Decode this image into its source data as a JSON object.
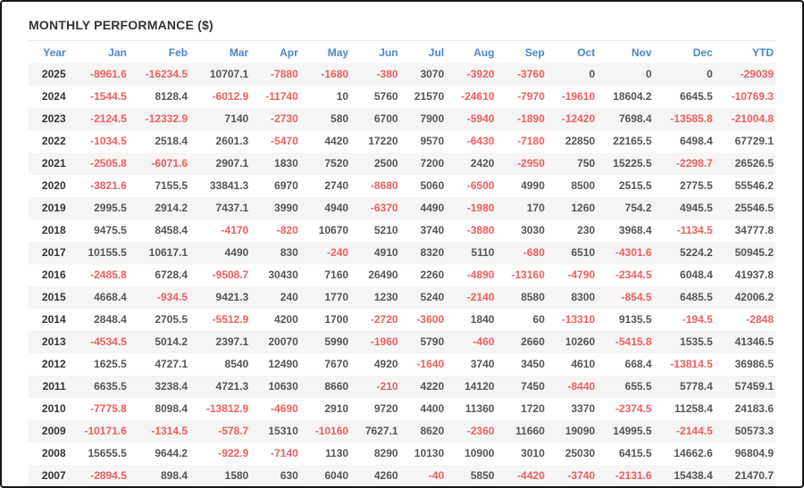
{
  "widget": {
    "title": "MONTHLY PERFORMANCE ($)"
  },
  "table": {
    "columns": [
      "Year",
      "Jan",
      "Feb",
      "Mar",
      "Apr",
      "May",
      "Jun",
      "Jul",
      "Aug",
      "Sep",
      "Oct",
      "Nov",
      "Dec",
      "YTD"
    ],
    "rows": [
      {
        "year": "2025",
        "values": [
          "-8961.6",
          "-16234.5",
          "10707.1",
          "-7880",
          "-1680",
          "-380",
          "3070",
          "-3920",
          "-3760",
          "0",
          "0",
          "0",
          "-29039"
        ]
      },
      {
        "year": "2024",
        "values": [
          "-1544.5",
          "8128.4",
          "-6012.9",
          "-11740",
          "10",
          "5760",
          "21570",
          "-24610",
          "-7970",
          "-19610",
          "18604.2",
          "6645.5",
          "-10769.3"
        ]
      },
      {
        "year": "2023",
        "values": [
          "-2124.5",
          "-12332.9",
          "7140",
          "-2730",
          "580",
          "6700",
          "7900",
          "-5940",
          "-1890",
          "-12420",
          "7698.4",
          "-13585.8",
          "-21004.8"
        ]
      },
      {
        "year": "2022",
        "values": [
          "-1034.5",
          "2518.4",
          "2601.3",
          "-5470",
          "4420",
          "17220",
          "9570",
          "-6430",
          "-7180",
          "22850",
          "22165.5",
          "6498.4",
          "67729.1"
        ]
      },
      {
        "year": "2021",
        "values": [
          "-2505.8",
          "-6071.6",
          "2907.1",
          "1830",
          "7520",
          "2500",
          "7200",
          "2420",
          "-2950",
          "750",
          "15225.5",
          "-2298.7",
          "26526.5"
        ]
      },
      {
        "year": "2020",
        "values": [
          "-3821.6",
          "7155.5",
          "33841.3",
          "6970",
          "2740",
          "-8680",
          "5060",
          "-6500",
          "4990",
          "8500",
          "2515.5",
          "2775.5",
          "55546.2"
        ]
      },
      {
        "year": "2019",
        "values": [
          "2995.5",
          "2914.2",
          "7437.1",
          "3990",
          "4940",
          "-6370",
          "4490",
          "-1980",
          "170",
          "1260",
          "754.2",
          "4945.5",
          "25546.5"
        ]
      },
      {
        "year": "2018",
        "values": [
          "9475.5",
          "8458.4",
          "-4170",
          "-820",
          "10670",
          "5210",
          "3740",
          "-3880",
          "3030",
          "230",
          "3968.4",
          "-1134.5",
          "34777.8"
        ]
      },
      {
        "year": "2017",
        "values": [
          "10155.5",
          "10617.1",
          "4490",
          "830",
          "-240",
          "4910",
          "8320",
          "5110",
          "-680",
          "6510",
          "-4301.6",
          "5224.2",
          "50945.2"
        ]
      },
      {
        "year": "2016",
        "values": [
          "-2485.8",
          "6728.4",
          "-9508.7",
          "30430",
          "7160",
          "26490",
          "2260",
          "-4890",
          "-13160",
          "-4790",
          "-2344.5",
          "6048.4",
          "41937.8"
        ]
      },
      {
        "year": "2015",
        "values": [
          "4668.4",
          "-934.5",
          "9421.3",
          "240",
          "1770",
          "1230",
          "5240",
          "-2140",
          "8580",
          "8300",
          "-854.5",
          "6485.5",
          "42006.2"
        ]
      },
      {
        "year": "2014",
        "values": [
          "2848.4",
          "2705.5",
          "-5512.9",
          "4200",
          "1700",
          "-2720",
          "-3600",
          "1840",
          "60",
          "-13310",
          "9135.5",
          "-194.5",
          "-2848"
        ]
      },
      {
        "year": "2013",
        "values": [
          "-4534.5",
          "5014.2",
          "2397.1",
          "20070",
          "5990",
          "-1960",
          "5790",
          "-460",
          "2660",
          "10260",
          "-5415.8",
          "1535.5",
          "41346.5"
        ]
      },
      {
        "year": "2012",
        "values": [
          "1625.5",
          "4727.1",
          "8540",
          "12490",
          "7670",
          "4920",
          "-1640",
          "3740",
          "3450",
          "4610",
          "668.4",
          "-13814.5",
          "36986.5"
        ]
      },
      {
        "year": "2011",
        "values": [
          "6635.5",
          "3238.4",
          "4721.3",
          "10630",
          "8660",
          "-210",
          "4220",
          "14120",
          "7450",
          "-8440",
          "655.5",
          "5778.4",
          "57459.1"
        ]
      },
      {
        "year": "2010",
        "values": [
          "-7775.8",
          "8098.4",
          "-13812.9",
          "-4690",
          "2910",
          "9720",
          "4400",
          "11360",
          "1720",
          "3370",
          "-2374.5",
          "11258.4",
          "24183.6"
        ]
      },
      {
        "year": "2009",
        "values": [
          "-10171.6",
          "-1314.5",
          "-578.7",
          "15310",
          "-10160",
          "7627.1",
          "8620",
          "-2360",
          "11660",
          "19090",
          "14995.5",
          "-2144.5",
          "50573.3"
        ]
      },
      {
        "year": "2008",
        "values": [
          "15655.5",
          "9644.2",
          "-922.9",
          "-7140",
          "1130",
          "8290",
          "10130",
          "10900",
          "3010",
          "25030",
          "6415.5",
          "14662.6",
          "96804.9"
        ]
      },
      {
        "year": "2007",
        "values": [
          "-2894.5",
          "898.4",
          "1580",
          "630",
          "6040",
          "4260",
          "-40",
          "5850",
          "-4420",
          "-3740",
          "-2131.6",
          "15438.4",
          "21470.7"
        ]
      }
    ]
  },
  "colors": {
    "title_text": "#333333",
    "header_text": "#4a87c6",
    "positive_value": "#555555",
    "negative_value": "#f05e5e",
    "year_text": "#333333",
    "row_stripe": "#f5f5f5",
    "frame_border": "#161616"
  }
}
